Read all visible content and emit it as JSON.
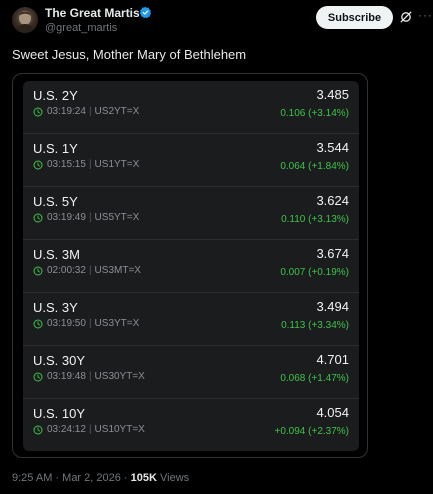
{
  "author": {
    "display_name": "The Great Martis",
    "handle": "@great_martis",
    "verified": true,
    "verified_color": "#1d9bf0"
  },
  "actions": {
    "subscribe_label": "Subscribe",
    "more_icon": "more-horizontal-icon",
    "grok_icon": "grok-icon"
  },
  "tweet": {
    "text": "Sweet Jesus, Mother Mary of Bethlehem"
  },
  "quotes": [
    {
      "name": "U.S. 2Y",
      "time": "03:19:24",
      "ticker": "US2YT=X",
      "price": "3.485",
      "change": "0.106 (+3.14%)"
    },
    {
      "name": "U.S. 1Y",
      "time": "03:15:15",
      "ticker": "US1YT=X",
      "price": "3.544",
      "change": "0.064 (+1.84%)"
    },
    {
      "name": "U.S. 5Y",
      "time": "03:19:49",
      "ticker": "US5YT=X",
      "price": "3.624",
      "change": "0.110 (+3.13%)"
    },
    {
      "name": "U.S. 3M",
      "time": "02:00:32",
      "ticker": "US3MT=X",
      "price": "3.674",
      "change": "0.007 (+0.19%)"
    },
    {
      "name": "U.S. 3Y",
      "time": "03:19:50",
      "ticker": "US3YT=X",
      "price": "3.494",
      "change": "0.113 (+3.34%)"
    },
    {
      "name": "U.S. 30Y",
      "time": "03:19:48",
      "ticker": "US30YT=X",
      "price": "4.701",
      "change": "0.068 (+1.47%)"
    },
    {
      "name": "U.S. 10Y",
      "time": "03:24:12",
      "ticker": "US10YT=X",
      "price": "4.054",
      "change": "+0.094 (+2.37%)"
    }
  ],
  "colors": {
    "positive_change": "#3ec24a",
    "clock": "#3ec24a"
  },
  "footer": {
    "time": "9:25 AM",
    "date": "Mar 2, 2026",
    "views_count": "105K",
    "views_label": "Views"
  }
}
